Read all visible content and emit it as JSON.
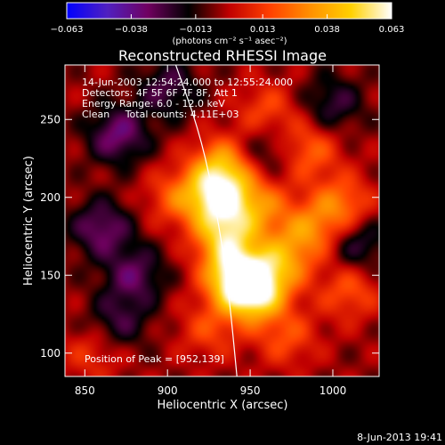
{
  "chart_data": {
    "type": "heatmap",
    "title": "Reconstructed RHESSI Image",
    "xlabel": "Heliocentric X (arcsec)",
    "ylabel": "Heliocentric Y (arcsec)",
    "xlim": [
      838,
      1028
    ],
    "ylim": [
      85,
      285
    ],
    "x_ticks": [
      850,
      900,
      950,
      1000
    ],
    "y_ticks": [
      100,
      150,
      200,
      250
    ],
    "x_tick_labels": [
      "850",
      "900",
      "950",
      "1000"
    ],
    "y_tick_labels": [
      "100",
      "150",
      "200",
      "250"
    ],
    "colorbar": {
      "range": [
        -0.063,
        0.063
      ],
      "ticks": [
        -0.063,
        -0.038,
        -0.013,
        0.013,
        0.038,
        0.063
      ],
      "tick_labels": [
        "−0.063",
        "−0.038",
        "−0.013",
        "0.013",
        "0.038",
        "0.063"
      ],
      "units": "(photons cm⁻² s⁻¹ asec⁻²)",
      "colors": [
        "#0000ff",
        "#5020c0",
        "#700060",
        "#000000",
        "#c00000",
        "#ff4000",
        "#ff9000",
        "#ffd000",
        "#ffffff"
      ]
    },
    "annotations": [
      "14-Jun-2003 12:54:24.000 to 12:55:24.000",
      "Detectors: 4F 5F 6F 7F 8F, Att 1",
      "Energy Range: 6.0 - 12.0 keV",
      "Clean     Total counts: 4.11E+03"
    ],
    "peak_label": "Position of Peak = [952,139]",
    "peak": [
      952,
      139
    ],
    "limb_curve": [
      [
        905,
        285
      ],
      [
        920,
        240
      ],
      [
        930,
        190
      ],
      [
        937,
        140
      ],
      [
        942,
        85
      ]
    ],
    "sources": [
      {
        "x": 952,
        "y": 139,
        "value": 0.063
      },
      {
        "x": 940,
        "y": 150,
        "value": 0.05
      },
      {
        "x": 935,
        "y": 175,
        "value": 0.045
      },
      {
        "x": 930,
        "y": 200,
        "value": 0.052
      },
      {
        "x": 933,
        "y": 220,
        "value": 0.04
      },
      {
        "x": 955,
        "y": 195,
        "value": 0.03
      },
      {
        "x": 968,
        "y": 158,
        "value": 0.034
      },
      {
        "x": 985,
        "y": 178,
        "value": 0.03
      },
      {
        "x": 1005,
        "y": 195,
        "value": 0.03
      },
      {
        "x": 985,
        "y": 230,
        "value": 0.026
      },
      {
        "x": 1010,
        "y": 140,
        "value": 0.022
      },
      {
        "x": 972,
        "y": 110,
        "value": 0.02
      },
      {
        "x": 925,
        "y": 115,
        "value": 0.018
      },
      {
        "x": 905,
        "y": 200,
        "value": 0.022
      },
      {
        "x": 960,
        "y": 255,
        "value": 0.02
      },
      {
        "x": 855,
        "y": 100,
        "value": 0.015
      },
      {
        "x": 870,
        "y": 240,
        "value": -0.03
      },
      {
        "x": 880,
        "y": 150,
        "value": -0.025
      },
      {
        "x": 860,
        "y": 180,
        "value": -0.028
      },
      {
        "x": 900,
        "y": 270,
        "value": -0.022
      },
      {
        "x": 870,
        "y": 120,
        "value": -0.02
      },
      {
        "x": 1000,
        "y": 260,
        "value": -0.02
      },
      {
        "x": 1015,
        "y": 170,
        "value": -0.022
      },
      {
        "x": 960,
        "y": 230,
        "value": -0.018
      }
    ]
  },
  "footer_date": "8-Jun-2013 19:41"
}
